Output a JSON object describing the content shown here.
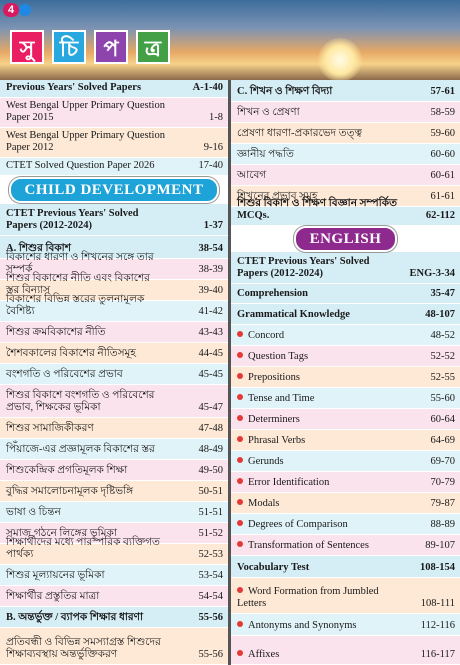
{
  "header": {
    "page_number": "4",
    "title_letters": [
      "সু",
      "চি",
      "প",
      "ত্র"
    ]
  },
  "left_column": {
    "items": [
      {
        "title": "Previous Years' Solved Papers",
        "pages": "A-1-40",
        "kind": "heading"
      },
      {
        "title": "West Bengal Upper Primary Question Paper 2015",
        "pages": "1-8",
        "kind": "row"
      },
      {
        "title": "West Bengal Upper Primary Question Paper 2012",
        "pages": "9-16",
        "kind": "row"
      },
      {
        "title": "CTET Solved Question Paper 2026",
        "pages": "17-40",
        "kind": "row"
      },
      {
        "title": "CHILD DEVELOPMENT",
        "kind": "banner",
        "color": "#1ea3d8"
      },
      {
        "title": "CTET Previous Years' Solved Papers (2012-2024)",
        "pages": "1-37",
        "kind": "heading"
      },
      {
        "title": "A. শিশুর বিকাশ",
        "pages": "38-54",
        "kind": "heading"
      },
      {
        "title": "বিকাশের ধারণা ও শিখনের সঙ্গে তার সম্পর্ক",
        "pages": "38-39",
        "kind": "row"
      },
      {
        "title": "শিশুর বিকাশের নীতি এবং বিকাশের স্তর বিন্যাস",
        "pages": "39-40",
        "kind": "row"
      },
      {
        "title": "বিকাশের বিভিন্ন স্তরের তুলনামূলক বৈশিষ্ট্য",
        "pages": "41-42",
        "kind": "row"
      },
      {
        "title": "শিশুর ক্রমবিকাশের নীতি",
        "pages": "43-43",
        "kind": "row"
      },
      {
        "title": "শৈশবকালের বিকাশের নীতিসমূহ",
        "pages": "44-45",
        "kind": "row"
      },
      {
        "title": "বংশগতি ও পরিবেশের প্রভাব",
        "pages": "45-45",
        "kind": "row"
      },
      {
        "title": "শিশুর বিকাশে বংশগতি ও পরিবেশের প্রভাব, শিক্ষকের ভূমিকা",
        "pages": "45-47",
        "kind": "row"
      },
      {
        "title": "শিশুর সামাজিকীকরণ",
        "pages": "47-48",
        "kind": "row"
      },
      {
        "title": "পিঁয়াজে-এর প্রজ্ঞামূলক বিকাশের স্তর",
        "pages": "48-49",
        "kind": "row"
      },
      {
        "title": "শিশুকেন্দ্রিক প্রগতিমূলক শিক্ষা",
        "pages": "49-50",
        "kind": "row"
      },
      {
        "title": "বুদ্ধির সমালোচনামূলক দৃষ্টিভঙ্গি",
        "pages": "50-51",
        "kind": "row"
      },
      {
        "title": "ভাষা ও চিন্তন",
        "pages": "51-51",
        "kind": "row"
      },
      {
        "title": "সমাজ গঠনে লিঙ্গের ভূমিকা",
        "pages": "51-52",
        "kind": "row"
      },
      {
        "title": "শিক্ষার্থীদের মধ্যে পারস্পরিক ব্যক্তিগত পার্থক্য",
        "pages": "52-53",
        "kind": "row"
      },
      {
        "title": "শিশুর মূল্যায়নের ভূমিকা",
        "pages": "53-54",
        "kind": "row"
      },
      {
        "title": "শিক্ষার্থীর প্রস্তুতির মাত্রা",
        "pages": "54-54",
        "kind": "row"
      },
      {
        "title": "B. অন্তর্ভুক্ত / ব্যাপক শিক্ষার ধারণা",
        "pages": "55-56",
        "kind": "heading"
      },
      {
        "title": "প্রতিবন্ধী ও বিভিন্ন সমস্যাগ্রস্ত শিশুদের শিক্ষাব্যবস্থায় অন্তর্ভুক্তিকরণ",
        "pages": "55-56",
        "kind": "row"
      }
    ]
  },
  "right_column": {
    "items": [
      {
        "title": "C. শিখন ও শিক্ষণ বিদ্যা",
        "pages": "57-61",
        "kind": "heading"
      },
      {
        "title": "শিখন ও প্রেষণা",
        "pages": "58-59",
        "kind": "row"
      },
      {
        "title": "প্রেষণা ধারণা-প্রকারভেদ তত্ত্ব",
        "pages": "59-60",
        "kind": "row"
      },
      {
        "title": "জ্ঞানীয় পদ্ধতি",
        "pages": "60-60",
        "kind": "row"
      },
      {
        "title": "আবেগ",
        "pages": "60-61",
        "kind": "row"
      },
      {
        "title": "শিখনের প্রভাব সমূহ",
        "pages": "61-61",
        "kind": "row"
      },
      {
        "title": "শিশুর বিকাশ ও শিক্ষণ বিজ্ঞান সম্পর্কিত MCQs.",
        "pages": "62-112",
        "kind": "heading"
      },
      {
        "title": "ENGLISH",
        "kind": "banner",
        "color": "#8e2a8e"
      },
      {
        "title": "CTET Previous Years' Solved Papers (2012-2024)",
        "pages": "ENG-3-34",
        "kind": "heading"
      },
      {
        "title": "Comprehension",
        "pages": "35-47",
        "kind": "heading"
      },
      {
        "title": "Grammatical Knowledge",
        "pages": "48-107",
        "kind": "heading"
      },
      {
        "title": "Concord",
        "pages": "48-52",
        "kind": "bullet"
      },
      {
        "title": "Question Tags",
        "pages": "52-52",
        "kind": "bullet"
      },
      {
        "title": "Prepositions",
        "pages": "52-55",
        "kind": "bullet"
      },
      {
        "title": "Tense and Time",
        "pages": "55-60",
        "kind": "bullet"
      },
      {
        "title": "Determiners",
        "pages": "60-64",
        "kind": "bullet"
      },
      {
        "title": "Phrasal Verbs",
        "pages": "64-69",
        "kind": "bullet"
      },
      {
        "title": "Gerunds",
        "pages": "69-70",
        "kind": "bullet"
      },
      {
        "title": "Error Identification",
        "pages": "70-79",
        "kind": "bullet"
      },
      {
        "title": "Modals",
        "pages": "79-87",
        "kind": "bullet"
      },
      {
        "title": "Degrees of Comparison",
        "pages": "88-89",
        "kind": "bullet"
      },
      {
        "title": "Transformation of Sentences",
        "pages": "89-107",
        "kind": "bullet"
      },
      {
        "title": "Vocabulary Test",
        "pages": "108-154",
        "kind": "heading"
      },
      {
        "title": "Word Formation from Jumbled Letters",
        "pages": "108-111",
        "kind": "bullet"
      },
      {
        "title": "Antonyms and Synonyms",
        "pages": "112-116",
        "kind": "bullet"
      },
      {
        "title": "Affixes",
        "pages": "116-117",
        "kind": "bullet"
      }
    ]
  }
}
